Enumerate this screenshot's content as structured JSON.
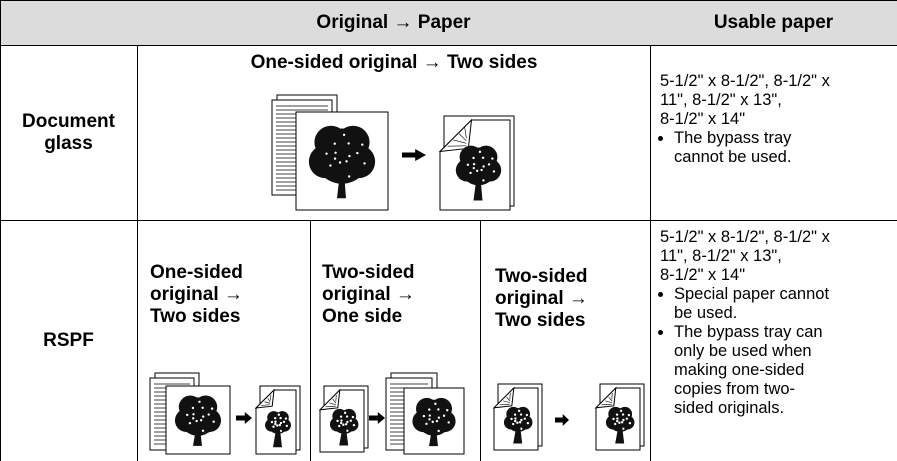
{
  "table": {
    "header": {
      "original_paper": "Original → Paper",
      "usable_paper": "Usable paper"
    },
    "rows": [
      {
        "label": [
          "Document",
          "glass"
        ],
        "modes": [
          {
            "title": [
              "One-sided original → Two sides"
            ]
          }
        ],
        "usable_paper": {
          "lines": [
            "5-1/2\" x 8-1/2\", 8-1/2\" x",
            "11\", 8-1/2\" x 13\",",
            "8-1/2\" x 14\""
          ],
          "notes": [
            [
              "The bypass tray",
              "cannot be used."
            ]
          ]
        }
      },
      {
        "label": [
          "RSPF"
        ],
        "modes": [
          {
            "title": [
              "One-sided",
              "original →",
              "Two sides"
            ]
          },
          {
            "title": [
              "Two-sided",
              "original →",
              "One side"
            ]
          },
          {
            "title": [
              "Two-sided",
              "original →",
              "Two sides"
            ]
          }
        ],
        "usable_paper": {
          "lines": [
            "5-1/2\" x 8-1/2\", 8-1/2\" x",
            "11\", 8-1/2\" x 13\",",
            "8-1/2\" x 14\""
          ],
          "notes": [
            [
              "Special paper cannot",
              "be used."
            ],
            [
              "The bypass tray can",
              "only be used when",
              "making one-sided",
              "copies from two-",
              "sided originals."
            ]
          ]
        }
      }
    ]
  }
}
